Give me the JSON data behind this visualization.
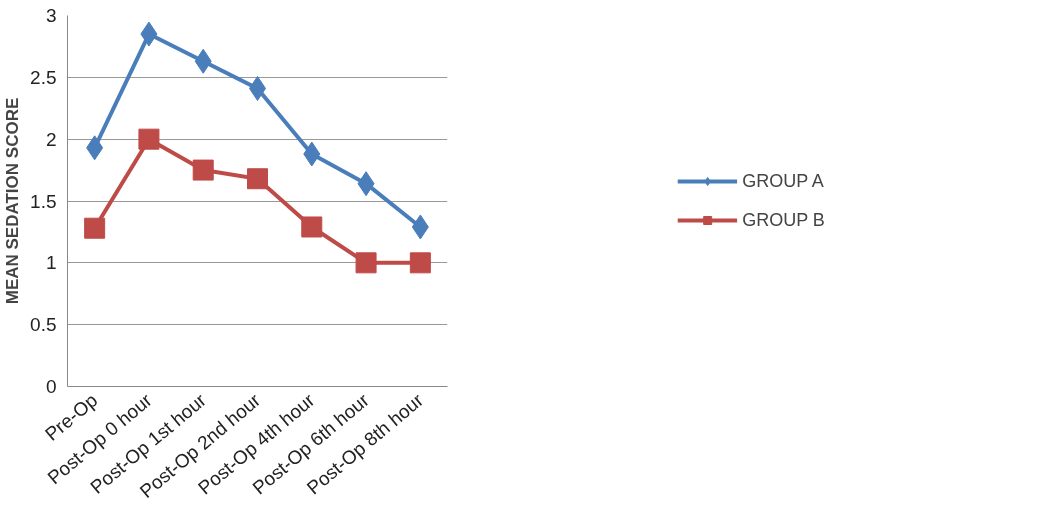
{
  "chart_data": {
    "type": "line",
    "ylabel": "MEAN SEDATION SCORE",
    "categories": [
      "Pre-Op",
      "Post-Op 0 hour",
      "Post-Op 1st hour",
      "Post-Op 2nd hour",
      "Post-Op 4th hour",
      "Post-Op 6th hour",
      "Post-Op 8th hour"
    ],
    "series": [
      {
        "name": "GROUP A",
        "color": "#4a7ebb",
        "marker": "diamond",
        "values": [
          1.93,
          2.85,
          2.63,
          2.41,
          1.88,
          1.64,
          1.29
        ]
      },
      {
        "name": "GROUP B",
        "color": "#be4b48",
        "marker": "square",
        "values": [
          1.28,
          2.0,
          1.75,
          1.68,
          1.29,
          1.0,
          1.0
        ]
      }
    ],
    "ylim": [
      0,
      3
    ],
    "yticks": [
      0,
      0.5,
      1,
      1.5,
      2,
      2.5,
      3
    ],
    "grid": "y",
    "legend": "right",
    "line_style": "solid"
  }
}
